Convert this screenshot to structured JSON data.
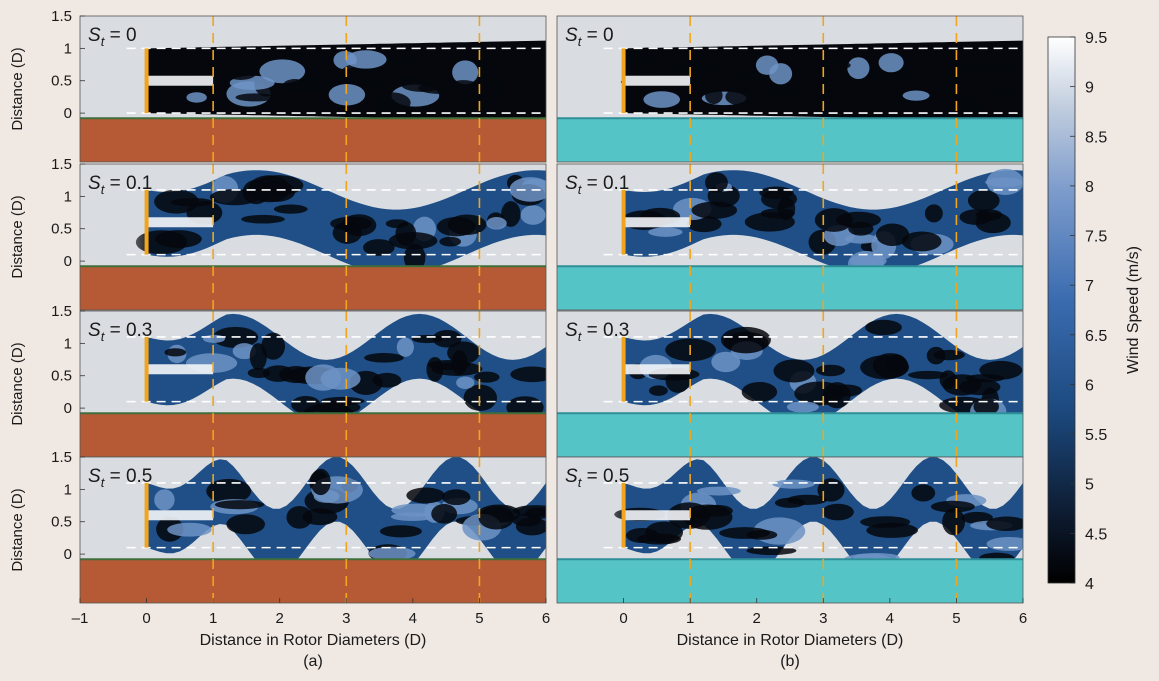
{
  "figure": {
    "colors": {
      "background": "#f0e8e3",
      "wake_dark": "#05070d",
      "wake_mid": "#1f4f86",
      "wake_light": "#6d93c6",
      "freestream": "#d9dde2",
      "rotor": "#f2a51c",
      "reference_line": "#f2a51c",
      "boundary_line": "#ffffff",
      "ground_a": "#b65a36",
      "ground_a_edge": "#3f6e3a",
      "ground_b": "#55c4c7",
      "ground_b_edge": "#2f8f98"
    }
  },
  "chart_data": [
    {
      "type": "heatmap",
      "panel_label": "(a)",
      "xlabel": "Distance in Rotor Diameters (D)",
      "ylabel": "Distance (D)",
      "xlim": [
        -1,
        6
      ],
      "ylim": [
        -0.4,
        1.5
      ],
      "x_ticks": [
        "–1",
        "0",
        "1",
        "2",
        "3",
        "4",
        "5",
        "6"
      ],
      "y_ticks": [
        "0",
        "0.5",
        "1",
        "1.5"
      ],
      "rotor_x": 0,
      "reference_lines_x": [
        1,
        3,
        5
      ],
      "ground": "brown",
      "rows": [
        {
          "title_sub": "t",
          "title_value": "0",
          "wake_bottom": 0.0,
          "wake_top": 1.0,
          "strouhal": 0.0
        },
        {
          "title_sub": "t",
          "title_value": "0.1",
          "wake_bottom": 0.1,
          "wake_top": 1.1,
          "strouhal": 0.1
        },
        {
          "title_sub": "t",
          "title_value": "0.3",
          "wake_bottom": 0.1,
          "wake_top": 1.1,
          "strouhal": 0.3
        },
        {
          "title_sub": "t",
          "title_value": "0.5",
          "wake_bottom": 0.1,
          "wake_top": 1.1,
          "strouhal": 0.5
        }
      ]
    },
    {
      "type": "heatmap",
      "panel_label": "(b)",
      "xlabel": "Distance in Rotor Diameters (D)",
      "ylabel": "",
      "xlim": [
        -1,
        6
      ],
      "ylim": [
        -0.4,
        1.5
      ],
      "x_ticks": [
        "0",
        "1",
        "2",
        "3",
        "4",
        "5",
        "6"
      ],
      "y_ticks": [],
      "rotor_x": 0,
      "reference_lines_x": [
        1,
        3,
        5
      ],
      "ground": "water",
      "rows": [
        {
          "title_sub": "t",
          "title_value": "0",
          "wake_bottom": 0.0,
          "wake_top": 1.0,
          "strouhal": 0.0
        },
        {
          "title_sub": "t",
          "title_value": "0.1",
          "wake_bottom": 0.1,
          "wake_top": 1.1,
          "strouhal": 0.1
        },
        {
          "title_sub": "t",
          "title_value": "0.3",
          "wake_bottom": 0.1,
          "wake_top": 1.1,
          "strouhal": 0.3
        },
        {
          "title_sub": "t",
          "title_value": "0.5",
          "wake_bottom": 0.1,
          "wake_top": 1.1,
          "strouhal": 0.5
        }
      ]
    }
  ],
  "colorbar": {
    "label": "Wind Speed (m/s)",
    "min": 4,
    "max": 9.5,
    "ticks": [
      "9.5",
      "9",
      "8.5",
      "8",
      "7.5",
      "7",
      "6.5",
      "6",
      "5.5",
      "5",
      "4.5",
      "4"
    ]
  }
}
